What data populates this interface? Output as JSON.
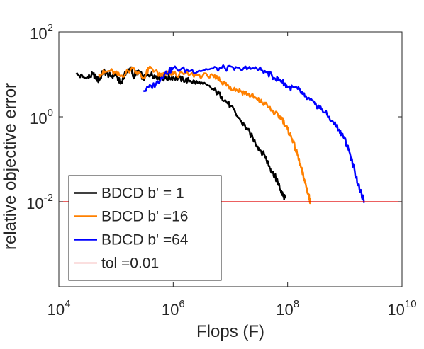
{
  "chart_data": {
    "type": "line",
    "xlabel": "Flops (F)",
    "ylabel": "relative objective error",
    "x_scale": "log",
    "y_scale": "log",
    "xlim": [
      10000,
      10000000000
    ],
    "ylim": [
      0.0001,
      100
    ],
    "x_ticks": [
      {
        "base": "10",
        "exp": "4"
      },
      {
        "base": "10",
        "exp": "6"
      },
      {
        "base": "10",
        "exp": "8"
      },
      {
        "base": "10",
        "exp": "10"
      }
    ],
    "y_ticks": [
      {
        "base": "10",
        "exp": "-2"
      },
      {
        "base": "10",
        "exp": "0"
      },
      {
        "base": "10",
        "exp": "2"
      }
    ],
    "legend_position": "bottom-left",
    "grid": false,
    "series": [
      {
        "name": "BDCD b' = 1",
        "color": "#000000",
        "x": [
          20000,
          30000,
          40000,
          50000,
          60000,
          80000,
          100000,
          120000,
          150000,
          180000,
          200000,
          250000,
          300000,
          400000,
          500000,
          700000,
          1000000,
          1500000,
          2000000,
          3000000,
          5000000,
          7000000,
          10000000,
          15000000,
          20000000,
          30000000,
          40000000,
          50000000,
          60000000,
          70000000,
          80000000,
          90000000
        ],
        "y": [
          10,
          8,
          10,
          7,
          12,
          9,
          10,
          6,
          11,
          14,
          9,
          12,
          8,
          10,
          9,
          8,
          8.5,
          7.5,
          7,
          6,
          4.5,
          3,
          1.8,
          0.8,
          0.5,
          0.2,
          0.12,
          0.06,
          0.04,
          0.025,
          0.015,
          0.012
        ]
      },
      {
        "name": "BDCD b' =16",
        "color": "#ff8000",
        "x": [
          50000,
          80000,
          120000,
          200000,
          300000,
          400000,
          600000,
          800000,
          1000000,
          2000000,
          4000000,
          6000000,
          8000000,
          10000000,
          15000000,
          20000000,
          30000000,
          40000000,
          60000000,
          80000000,
          100000000,
          120000000,
          150000000,
          180000000,
          200000000,
          230000000,
          250000000
        ],
        "y": [
          10,
          12,
          9,
          14,
          8,
          15,
          9,
          11,
          10,
          10,
          9,
          8,
          6,
          5,
          4,
          3.5,
          2.5,
          2,
          1.2,
          0.9,
          0.5,
          0.3,
          0.12,
          0.05,
          0.03,
          0.015,
          0.01
        ]
      },
      {
        "name": "BDCD b' =64",
        "color": "#0000ff",
        "x": [
          300000,
          500000,
          700000,
          1000000,
          2000000,
          4000000,
          8000000,
          15000000,
          25000000,
          40000000,
          60000000,
          80000000,
          100000000,
          150000000,
          200000000,
          300000000,
          400000000,
          600000000,
          800000000,
          1000000000,
          1200000000,
          1500000000,
          1800000000,
          2200000000
        ],
        "y": [
          4,
          6,
          10,
          14,
          12,
          13,
          14,
          13,
          14,
          12,
          8,
          7,
          5,
          4.5,
          3,
          2,
          1.5,
          0.8,
          0.5,
          0.3,
          0.15,
          0.05,
          0.02,
          0.01
        ]
      },
      {
        "name": "tol =0.01",
        "color": "#e00000",
        "x": [
          10000,
          10000000000
        ],
        "y": [
          0.01,
          0.01
        ]
      }
    ]
  }
}
